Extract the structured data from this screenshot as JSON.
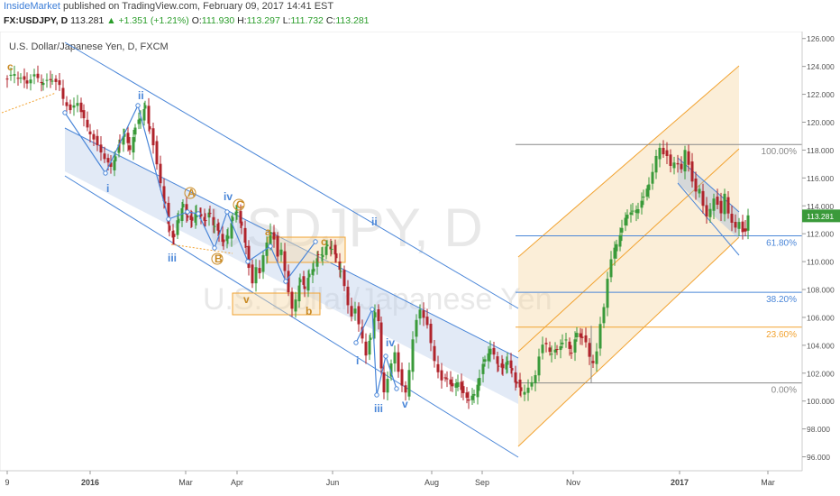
{
  "header": {
    "brand": "InsideMarket",
    "published": " published on TradingView.com, February 09, 2017 14:41 EST",
    "symbol": "FX:USDJPY, D",
    "last": "113.281",
    "arrow": "▲",
    "change": "+1.351 (+1.21%)",
    "o_label": "O:",
    "o": "111.930",
    "h_label": "H:",
    "h": "113.297",
    "l_label": "L:",
    "l": "111.732",
    "c_label": "C:",
    "c": "113.281"
  },
  "chart_data": {
    "type": "candlestick",
    "title": "U.S. Dollar/Japanese Yen, D, FXCM",
    "watermark_symbol": "USDJPY, D",
    "watermark_name": "U.S. Dollar/Japanese Yen",
    "ylim": [
      95,
      126.5
    ],
    "y_ticks": [
      "126.000",
      "124.000",
      "122.000",
      "120.000",
      "118.000",
      "116.000",
      "114.000",
      "112.000",
      "110.000",
      "108.000",
      "106.000",
      "104.000",
      "102.000",
      "100.000",
      "98.000",
      "96.000"
    ],
    "x_ticks": [
      "9",
      "2016",
      "Mar",
      "Apr",
      "Jun",
      "Aug",
      "Sep",
      "Nov",
      "2017",
      "Mar"
    ],
    "last_price": "113.281",
    "colors": {
      "up": "#3a9a3a",
      "down": "#b0242c",
      "channel": "#4a86d8",
      "pitchfork": "#f2a331",
      "wave_blue": "#4a86d8",
      "wave_orange": "#c98a24"
    },
    "fib_levels": [
      {
        "label": "100.00%",
        "price": 118.4
      },
      {
        "label": "61.80%",
        "price": 111.85
      },
      {
        "label": "38.20%",
        "price": 107.8
      },
      {
        "label": "23.60%",
        "price": 105.3
      },
      {
        "label": "0.00%",
        "price": 101.3
      }
    ],
    "price_path": [
      [
        0,
        123.0
      ],
      [
        8,
        123.5
      ],
      [
        15,
        123.2
      ],
      [
        22,
        122.8
      ],
      [
        30,
        123.3
      ],
      [
        40,
        122.9
      ],
      [
        50,
        123.0
      ],
      [
        58,
        122.6
      ],
      [
        62,
        121.8
      ],
      [
        70,
        120.8
      ],
      [
        78,
        121.4
      ],
      [
        85,
        120.2
      ],
      [
        92,
        119.3
      ],
      [
        100,
        118.2
      ],
      [
        108,
        117.4
      ],
      [
        115,
        116.8
      ],
      [
        120,
        117.6
      ],
      [
        125,
        118.4
      ],
      [
        130,
        119.2
      ],
      [
        136,
        118.1
      ],
      [
        142,
        119.5
      ],
      [
        148,
        120.3
      ],
      [
        153,
        121.2
      ],
      [
        158,
        119.6
      ],
      [
        162,
        118.3
      ],
      [
        166,
        116.8
      ],
      [
        170,
        115.6
      ],
      [
        175,
        114.2
      ],
      [
        180,
        112.3
      ],
      [
        185,
        111.6
      ],
      [
        190,
        113.2
      ],
      [
        195,
        114.1
      ],
      [
        200,
        113.2
      ],
      [
        205,
        112.8
      ],
      [
        210,
        113.7
      ],
      [
        215,
        113.2
      ],
      [
        220,
        112.9
      ],
      [
        225,
        113.5
      ],
      [
        230,
        112.6
      ],
      [
        235,
        112.0
      ],
      [
        240,
        111.3
      ],
      [
        245,
        112.0
      ],
      [
        250,
        113.1
      ],
      [
        255,
        113.6
      ],
      [
        260,
        112.5
      ],
      [
        265,
        111.2
      ],
      [
        268,
        109.5
      ],
      [
        272,
        108.3
      ],
      [
        276,
        109.6
      ],
      [
        280,
        109.2
      ],
      [
        284,
        110.4
      ],
      [
        288,
        111.4
      ],
      [
        292,
        112.3
      ],
      [
        296,
        111.6
      ],
      [
        300,
        110.2
      ],
      [
        304,
        110.8
      ],
      [
        308,
        109.4
      ],
      [
        312,
        107.8
      ],
      [
        316,
        106.6
      ],
      [
        320,
        107.4
      ],
      [
        325,
        108.6
      ],
      [
        330,
        108.1
      ],
      [
        335,
        109.1
      ],
      [
        340,
        109.6
      ],
      [
        345,
        110.3
      ],
      [
        350,
        110.6
      ],
      [
        355,
        111.2
      ],
      [
        360,
        110.9
      ],
      [
        365,
        110.2
      ],
      [
        370,
        109.4
      ],
      [
        374,
        108.2
      ],
      [
        378,
        106.9
      ],
      [
        382,
        106.1
      ],
      [
        386,
        106.5
      ],
      [
        390,
        105.4
      ],
      [
        394,
        104.6
      ],
      [
        398,
        103.4
      ],
      [
        403,
        104.5
      ],
      [
        408,
        106.3
      ],
      [
        412,
        105.6
      ],
      [
        415,
        102.4
      ],
      [
        418,
        100.8
      ],
      [
        422,
        101.6
      ],
      [
        426,
        102.6
      ],
      [
        430,
        103.5
      ],
      [
        434,
        102.1
      ],
      [
        438,
        101.0
      ],
      [
        442,
        100.6
      ],
      [
        446,
        102.4
      ],
      [
        450,
        104.5
      ],
      [
        454,
        105.7
      ],
      [
        458,
        106.5
      ],
      [
        462,
        106.0
      ],
      [
        466,
        105.4
      ],
      [
        470,
        104.1
      ],
      [
        474,
        103.0
      ],
      [
        478,
        102.2
      ],
      [
        482,
        101.4
      ],
      [
        488,
        101.6
      ],
      [
        494,
        101.0
      ],
      [
        500,
        101.5
      ],
      [
        506,
        100.4
      ],
      [
        512,
        100.1
      ],
      [
        518,
        100.5
      ],
      [
        524,
        101.7
      ],
      [
        530,
        102.9
      ],
      [
        536,
        103.8
      ],
      [
        540,
        103.3
      ],
      [
        545,
        102.6
      ],
      [
        550,
        102.2
      ],
      [
        555,
        103.0
      ],
      [
        560,
        102.2
      ],
      [
        565,
        101.2
      ],
      [
        570,
        100.7
      ],
      [
        574,
        100.8
      ],
      [
        578,
        101.0
      ],
      [
        582,
        101.3
      ],
      [
        586,
        101.9
      ],
      [
        590,
        103.2
      ],
      [
        594,
        103.9
      ],
      [
        598,
        104.0
      ],
      [
        604,
        103.5
      ],
      [
        610,
        103.7
      ],
      [
        616,
        104.1
      ],
      [
        620,
        104.3
      ],
      [
        626,
        103.6
      ],
      [
        632,
        104.8
      ],
      [
        638,
        104.5
      ],
      [
        642,
        104.1
      ],
      [
        646,
        103.2
      ],
      [
        650,
        102.9
      ],
      [
        654,
        103.6
      ],
      [
        658,
        105.4
      ],
      [
        662,
        106.7
      ],
      [
        666,
        108.8
      ],
      [
        670,
        110.1
      ],
      [
        676,
        111.4
      ],
      [
        682,
        112.3
      ],
      [
        688,
        113.4
      ],
      [
        694,
        113.6
      ],
      [
        700,
        113.9
      ],
      [
        706,
        114.5
      ],
      [
        712,
        115.6
      ],
      [
        716,
        116.4
      ],
      [
        720,
        117.6
      ],
      [
        724,
        118.3
      ],
      [
        728,
        117.7
      ],
      [
        732,
        117.4
      ],
      [
        736,
        116.8
      ],
      [
        740,
        117.2
      ],
      [
        744,
        117.0
      ],
      [
        748,
        116.6
      ],
      [
        752,
        118.1
      ],
      [
        756,
        117.0
      ],
      [
        760,
        115.6
      ],
      [
        764,
        114.9
      ],
      [
        768,
        115.3
      ],
      [
        772,
        114.1
      ],
      [
        776,
        113.2
      ],
      [
        780,
        113.8
      ],
      [
        784,
        114.6
      ],
      [
        788,
        114.0
      ],
      [
        792,
        113.3
      ],
      [
        796,
        114.9
      ],
      [
        800,
        113.6
      ],
      [
        804,
        112.8
      ],
      [
        808,
        112.4
      ],
      [
        812,
        112.9
      ],
      [
        816,
        112.1
      ],
      [
        819,
        112.0
      ],
      [
        822,
        113.28
      ]
    ],
    "annotations": [
      {
        "text": "c",
        "color": "orange"
      },
      {
        "text": "ii",
        "color": "blue"
      },
      {
        "text": "i",
        "color": "blue"
      },
      {
        "text": "iii",
        "color": "blue"
      },
      {
        "text": "A",
        "color": "orange"
      },
      {
        "text": "B",
        "color": "orange"
      },
      {
        "text": "C",
        "color": "orange"
      },
      {
        "text": "iv",
        "color": "blue"
      },
      {
        "text": "v",
        "color": "orange"
      },
      {
        "text": "a",
        "color": "orange"
      },
      {
        "text": "c",
        "color": "orange"
      },
      {
        "text": "b",
        "color": "orange"
      },
      {
        "text": "ii",
        "color": "blue"
      },
      {
        "text": "i",
        "color": "blue"
      },
      {
        "text": "iv",
        "color": "blue"
      },
      {
        "text": "iii",
        "color": "blue"
      },
      {
        "text": "v",
        "color": "blue"
      }
    ]
  }
}
